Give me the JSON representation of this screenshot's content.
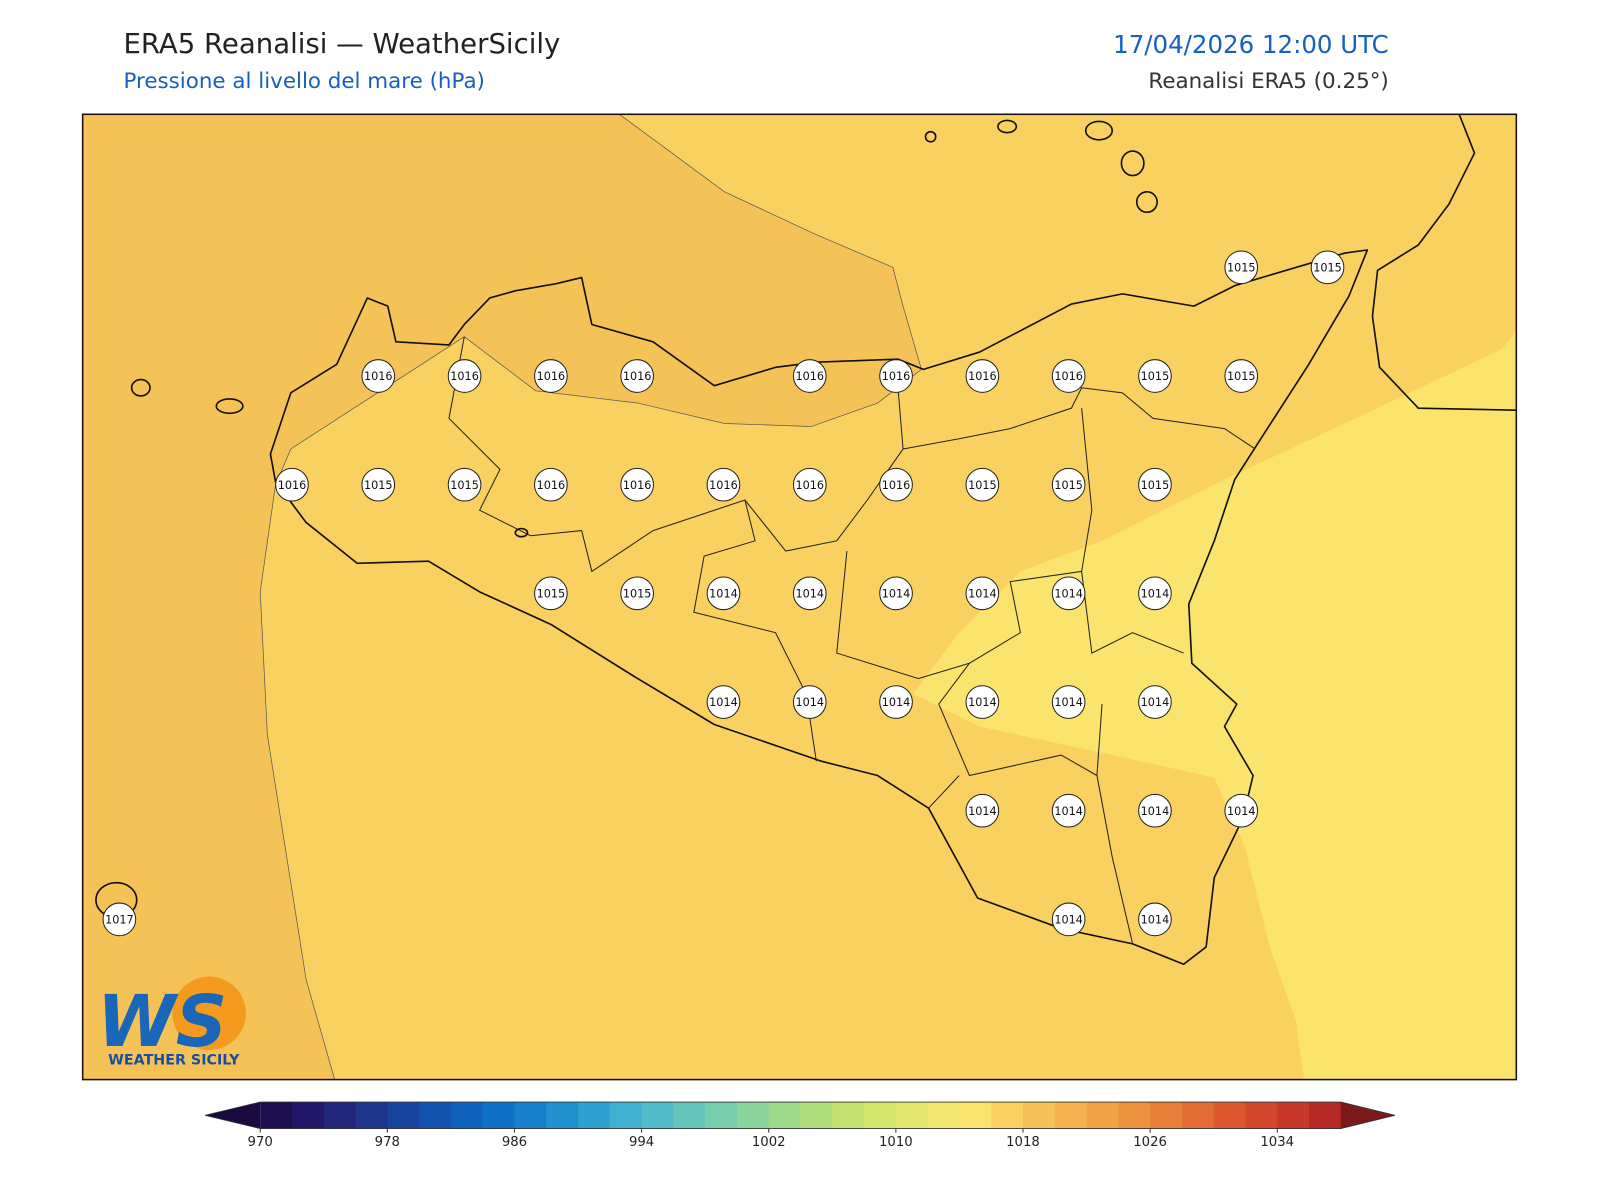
{
  "header": {
    "title": "ERA5 Reanalisi — WeatherSicily",
    "subtitle": "Pressione al livello del mare (hPa)",
    "datetime": "17/04/2026 12:00 UTC",
    "source": "Reanalisi ERA5 (0.25°)"
  },
  "map": {
    "stations": {
      "rows": [
        [
          null,
          null,
          null,
          null,
          null,
          null,
          null,
          null,
          null,
          null,
          null,
          null,
          null,
          1015,
          1015
        ],
        [
          null,
          null,
          null,
          1016,
          1016,
          1016,
          1016,
          null,
          1016,
          1016,
          1016,
          1016,
          1015,
          1015,
          null
        ],
        [
          null,
          null,
          1016,
          1015,
          1015,
          1016,
          1016,
          1016,
          1016,
          1016,
          1015,
          1015,
          1015,
          null,
          null
        ],
        [
          null,
          null,
          null,
          null,
          null,
          1015,
          1015,
          1014,
          1014,
          1014,
          1014,
          1014,
          1014,
          null,
          null
        ],
        [
          null,
          null,
          null,
          null,
          null,
          null,
          null,
          1014,
          1014,
          1014,
          1014,
          1014,
          1014,
          null,
          null
        ],
        [
          null,
          null,
          null,
          null,
          null,
          null,
          null,
          null,
          null,
          null,
          1014,
          1014,
          1014,
          1014,
          null
        ],
        [
          1017,
          null,
          null,
          null,
          null,
          null,
          null,
          null,
          null,
          null,
          null,
          1014,
          1014,
          null,
          null
        ]
      ]
    }
  },
  "colorbar": {
    "clim": [
      970,
      1038
    ],
    "ticks": [
      970,
      978,
      986,
      994,
      1002,
      1010,
      1018,
      1026,
      1034
    ],
    "colors": [
      "#1e0f4f",
      "#221769",
      "#22267a",
      "#1e358c",
      "#18449e",
      "#1353ad",
      "#0f62bb",
      "#0f71c5",
      "#1680cb",
      "#2190cf",
      "#2ea1d2",
      "#3fb0d0",
      "#52bcc9",
      "#65c7bc",
      "#78ceac",
      "#8bd49c",
      "#9eda8c",
      "#b1de7c",
      "#c4e26f",
      "#d4e56c",
      "#e3e76e",
      "#f2e56e",
      "#fbe46e",
      "#f9d160",
      "#f6c257",
      "#f3b24e",
      "#f0a245",
      "#ec913e",
      "#e87f38",
      "#e36c33",
      "#dc592f",
      "#d3472c",
      "#c8382a",
      "#b42a27"
    ],
    "under_color": "#1a0a40",
    "over_color": "#7a1a1a"
  },
  "logo": {
    "initials": "WS",
    "name": "WEATHER SICILY"
  }
}
